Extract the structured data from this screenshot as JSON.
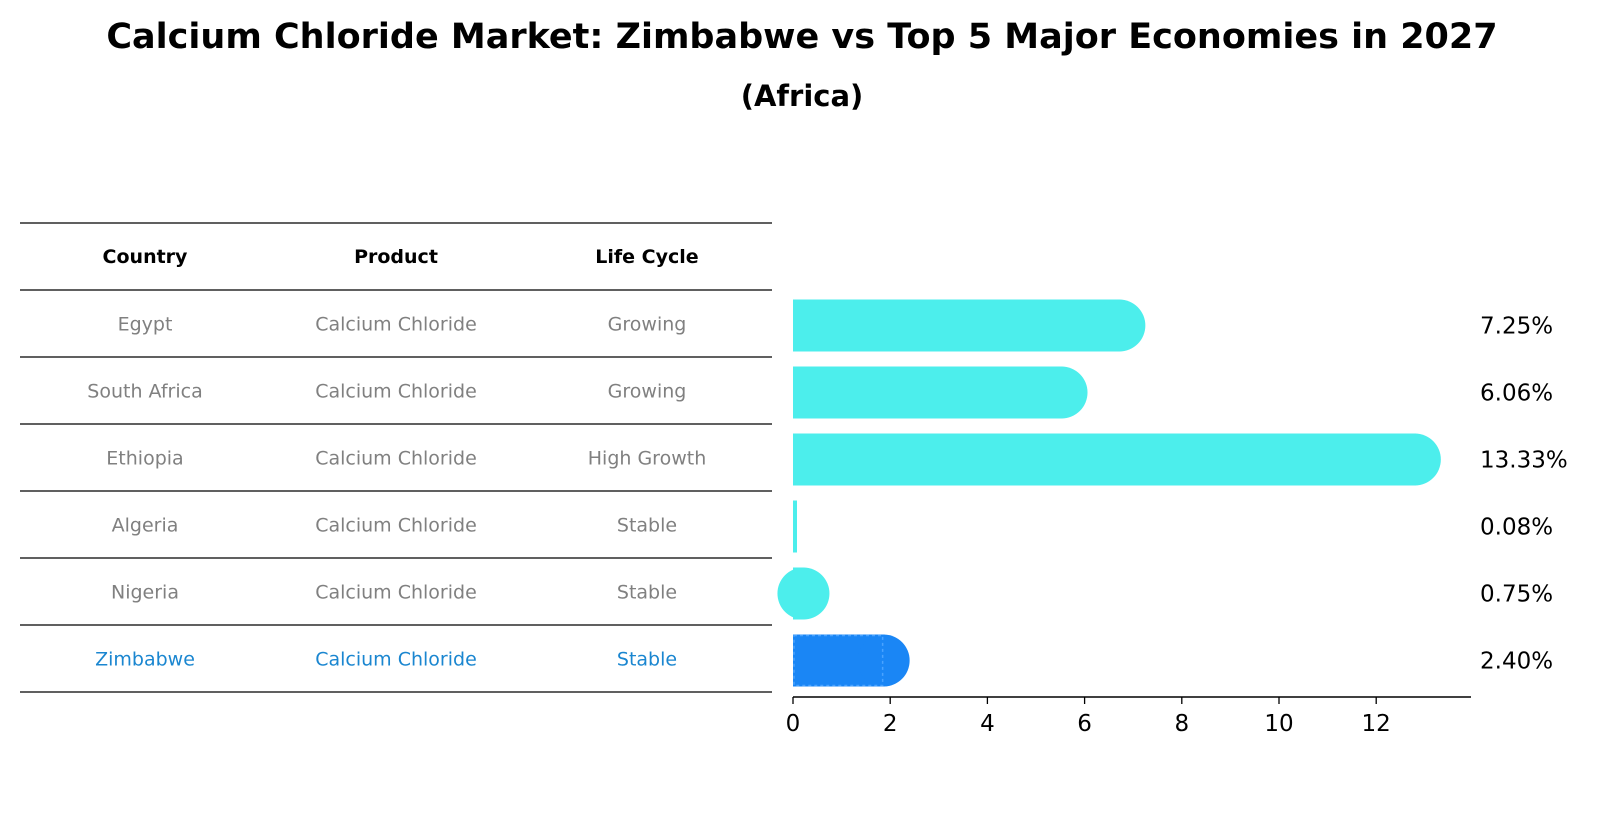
{
  "title": "Calcium Chloride Market: Zimbabwe vs Top 5 Major Economies in 2027",
  "subtitle": "(Africa)",
  "table": {
    "headers": [
      "Country",
      "Product",
      "Life Cycle"
    ],
    "rows": [
      {
        "country": "Egypt",
        "product": "Calcium Chloride",
        "life_cycle": "Growing",
        "highlight": false
      },
      {
        "country": "South Africa",
        "product": "Calcium Chloride",
        "life_cycle": "Growing",
        "highlight": false
      },
      {
        "country": "Ethiopia",
        "product": "Calcium Chloride",
        "life_cycle": "High Growth",
        "highlight": false
      },
      {
        "country": "Algeria",
        "product": "Calcium Chloride",
        "life_cycle": "Stable",
        "highlight": false
      },
      {
        "country": "Nigeria",
        "product": "Calcium Chloride",
        "life_cycle": "Stable",
        "highlight": false
      },
      {
        "country": "Zimbabwe",
        "product": "Calcium Chloride",
        "life_cycle": "Stable",
        "highlight": true
      }
    ]
  },
  "chart_data": {
    "type": "bar",
    "orientation": "horizontal",
    "categories": [
      "Egypt",
      "South Africa",
      "Ethiopia",
      "Algeria",
      "Nigeria",
      "Zimbabwe"
    ],
    "values": [
      7.25,
      6.06,
      13.33,
      0.08,
      0.75,
      2.4
    ],
    "value_labels": [
      "7.25%",
      "6.06%",
      "13.33%",
      "0.08%",
      "0.75%",
      "2.40%"
    ],
    "highlight_index": 5,
    "xlim": [
      0,
      14
    ],
    "xticks": [
      0,
      2,
      4,
      6,
      8,
      10,
      12
    ],
    "colors": {
      "default_bar": "#4CEEEC",
      "highlight_bar": "#1A86F5",
      "highlight_text": "#1A86D0",
      "muted_text": "#808080",
      "axis": "#000000"
    }
  }
}
